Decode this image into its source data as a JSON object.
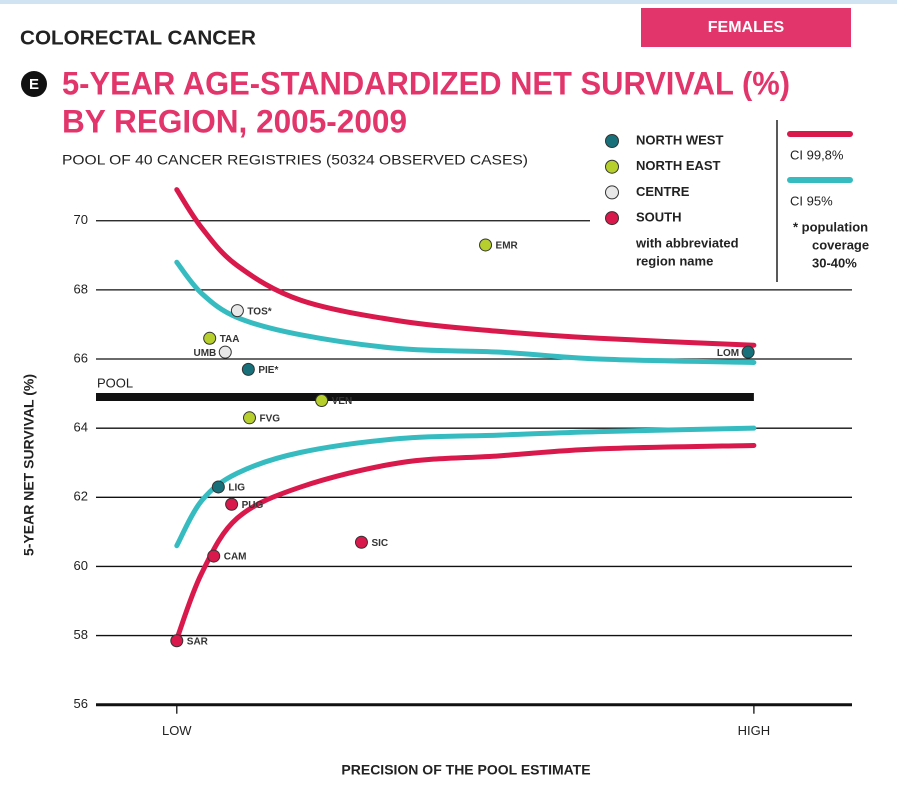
{
  "chart_data": {
    "type": "funnel",
    "header": "COLORECTAL CANCER",
    "badge_letter": "E",
    "sex": "FEMALES",
    "title_lines": [
      "5-YEAR AGE-STANDARDIZED NET SURVIVAL (%)",
      "BY REGION, 2005-2009"
    ],
    "subtitle": "POOL OF 40 CANCER REGISTRIES (50324 OBSERVED CASES)",
    "y_label": "5-YEAR NET SURVIVAL (%)",
    "x_label": "PRECISION OF THE POOL ESTIMATE",
    "xlim": [
      -14,
      117
    ],
    "xticks": [
      {
        "value": 0,
        "label": "LOW"
      },
      {
        "value": 100,
        "label": "HIGH"
      }
    ],
    "ylim": [
      55.5,
      71.7
    ],
    "yticks": [
      56,
      58,
      60,
      62,
      64,
      66,
      68,
      70
    ],
    "grid": true,
    "pool": {
      "label": "POOL",
      "value": 64.9
    },
    "curve_x": [
      0,
      4.3,
      10.5,
      21.5,
      38.7,
      55.9,
      73.1,
      100
    ],
    "limits": [
      {
        "name": "CI 99,8%",
        "color": "#d9184b",
        "upper": [
          70.9,
          69.8,
          68.7,
          67.7,
          67.1,
          66.8,
          66.6,
          66.4
        ],
        "lower": [
          57.9,
          59.8,
          61.4,
          62.3,
          63.0,
          63.2,
          63.4,
          63.5
        ]
      },
      {
        "name": "CI 95%",
        "color": "#36bcc0",
        "upper": [
          68.8,
          67.9,
          67.2,
          66.7,
          66.3,
          66.2,
          66.0,
          65.9
        ],
        "lower": [
          60.6,
          61.9,
          62.7,
          63.3,
          63.7,
          63.8,
          63.9,
          64.0
        ]
      }
    ],
    "series": [
      {
        "name": "NORTH WEST",
        "color": "#17707a",
        "labels": [
          "LIG",
          "PIE*",
          "LOM"
        ],
        "x": [
          7.2,
          12.4,
          99
        ],
        "values": [
          62.3,
          65.7,
          66.2
        ]
      },
      {
        "name": "NORTH EAST",
        "color": "#b7cf2d",
        "labels": [
          "TAA",
          "FVG",
          "VEN",
          "EMR"
        ],
        "x": [
          5.7,
          12.6,
          25.1,
          53.5
        ],
        "values": [
          66.6,
          64.3,
          64.8,
          69.3
        ]
      },
      {
        "name": "CENTRE",
        "color": "#e8e8e8",
        "labels": [
          "TOS*",
          "UMB"
        ],
        "x": [
          10.5,
          8.4
        ],
        "values": [
          67.4,
          66.2
        ]
      },
      {
        "name": "SOUTH",
        "color": "#d9184b",
        "labels": [
          "SAR",
          "CAM",
          "PUG",
          "SIC"
        ],
        "x": [
          0,
          6.4,
          9.5,
          32
        ],
        "values": [
          57.85,
          60.3,
          61.8,
          60.7
        ]
      }
    ],
    "legend_note_lines": [
      "with abbreviated",
      "region name"
    ],
    "footnote_lines": [
      "* population",
      "coverage",
      "30-40%"
    ]
  }
}
